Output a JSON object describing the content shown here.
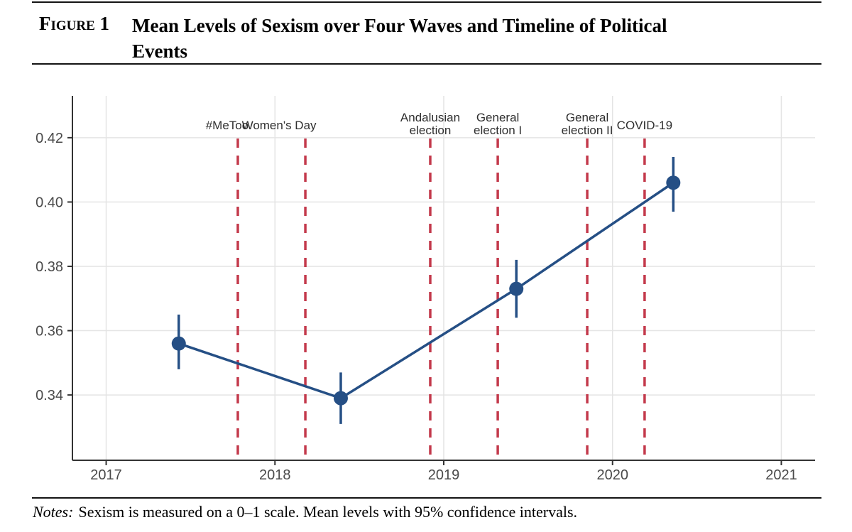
{
  "header": {
    "figure_label": "Figure 1",
    "title_lines": [
      "Mean Levels of Sexism over Four Waves and Timeline of Political",
      "Events"
    ]
  },
  "notes": {
    "label": "Notes:",
    "text": "Sexism is measured on a 0–1 scale. Mean levels with 95% confidence intervals."
  },
  "chart_data": {
    "type": "line",
    "title": "",
    "xlabel": "",
    "ylabel": "",
    "x": [
      2017.43,
      2018.39,
      2019.43,
      2020.36
    ],
    "series": [
      {
        "name": "Mean sexism level",
        "values": [
          0.356,
          0.339,
          0.373,
          0.406
        ],
        "ci_low": [
          0.348,
          0.331,
          0.364,
          0.397
        ],
        "ci_high": [
          0.365,
          0.347,
          0.382,
          0.414
        ]
      }
    ],
    "events": [
      {
        "label": "#MeToo",
        "x": 2017.78,
        "label_lines": [
          "#MeToo"
        ],
        "label_dx": -15
      },
      {
        "label": "Women's Day",
        "x": 2018.18,
        "label_lines": [
          "Women's Day"
        ],
        "label_dx": -37
      },
      {
        "label": "Andalusian election",
        "x": 2018.92,
        "label_lines": [
          "Andalusian",
          "election"
        ],
        "label_dx": 0
      },
      {
        "label": "General election I",
        "x": 2019.32,
        "label_lines": [
          "General",
          "election I"
        ],
        "label_dx": 0
      },
      {
        "label": "General election II",
        "x": 2019.85,
        "label_lines": [
          "General",
          "election II"
        ],
        "label_dx": 0
      },
      {
        "label": "COVID-19",
        "x": 2020.19,
        "label_lines": [
          "COVID-19"
        ],
        "label_dx": 0
      }
    ],
    "x_ticks": [
      2017,
      2018,
      2019,
      2020,
      2021
    ],
    "x_tick_labels": [
      "2017",
      "2018",
      "2019",
      "2020",
      "2021"
    ],
    "y_ticks": [
      0.34,
      0.36,
      0.38,
      0.4,
      0.42
    ],
    "y_tick_labels": [
      "0.34",
      "0.36",
      "0.38",
      "0.40",
      "0.42"
    ],
    "xlim": [
      2016.8,
      2021.2
    ],
    "ylim": [
      0.3197,
      0.433
    ],
    "grid": true,
    "legend": false,
    "colors": {
      "line": "#254f85",
      "event": "#c3394b",
      "grid": "#e4e4e4",
      "axis": "#333333",
      "tick_label": "#4a4a4a",
      "event_label": "#2e2e2e"
    }
  }
}
